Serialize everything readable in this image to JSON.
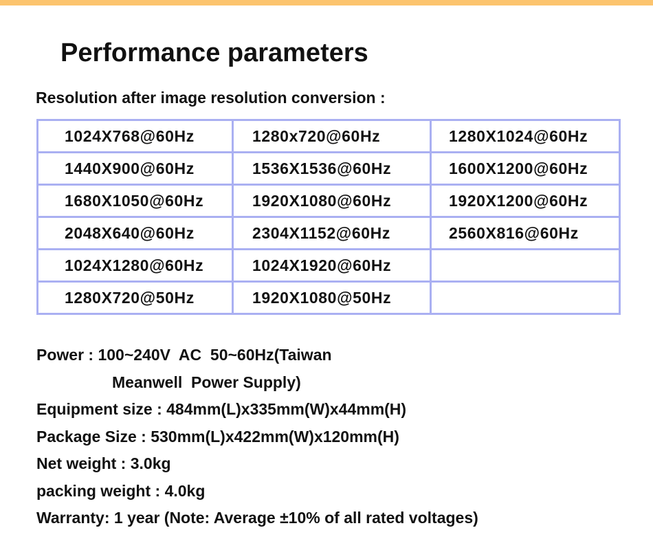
{
  "header": {
    "title": "Performance parameters",
    "subtitle": "Resolution after image resolution conversion :"
  },
  "table": {
    "rows": [
      [
        "1024X768@60Hz",
        "1280x720@60Hz",
        "1280X1024@60Hz"
      ],
      [
        "1440X900@60Hz",
        "1536X1536@60Hz",
        "1600X1200@60Hz"
      ],
      [
        "1680X1050@60Hz",
        "1920X1080@60Hz",
        "1920X1200@60Hz"
      ],
      [
        "2048X640@60Hz",
        "2304X1152@60Hz",
        "2560X816@60Hz"
      ],
      [
        "1024X1280@60Hz",
        "1024X1920@60Hz",
        null
      ],
      [
        "1280X720@50Hz",
        "1920X1080@50Hz",
        null
      ]
    ]
  },
  "specs": [
    "Power : 100~240V  AC  50~60Hz(Taiwan",
    "Meanwell  Power Supply)",
    "Equipment size : 484mm(L)x335mm(W)x44mm(H)",
    "Package Size : 530mm(L)x422mm(W)x120mm(H)",
    "Net weight : 3.0kg",
    "packing weight : 4.0kg",
    "Warranty: 1 year (Note: Average ±10% of all rated voltages)"
  ]
}
